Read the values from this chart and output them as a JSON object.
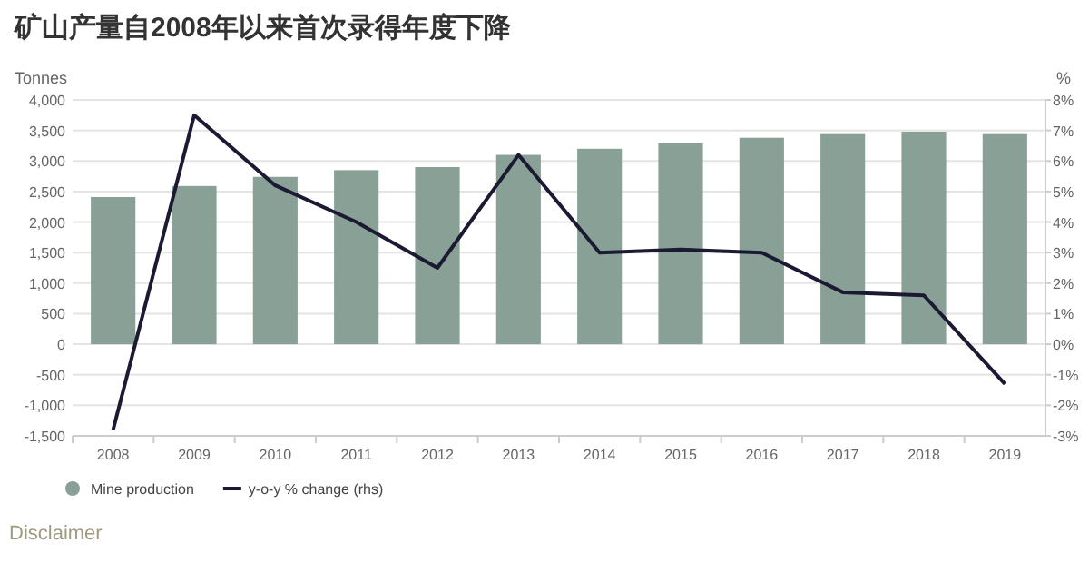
{
  "chart_data": {
    "type": "bar",
    "title": "矿山产量自2008年以来首次录得年度下降",
    "ylabel": "Tonnes",
    "y2label": "%",
    "categories": [
      "2008",
      "2009",
      "2010",
      "2011",
      "2012",
      "2013",
      "2014",
      "2015",
      "2016",
      "2017",
      "2018",
      "2019"
    ],
    "series": [
      {
        "name": "Mine production",
        "color": "#88a096",
        "values": [
          2410,
          2590,
          2740,
          2850,
          2900,
          3100,
          3200,
          3290,
          3380,
          3440,
          3480,
          3440
        ]
      },
      {
        "name": "y-o-y % change (rhs)",
        "type": "line",
        "axis": "y2",
        "color": "#1c1a33",
        "values": [
          -2.8,
          7.5,
          5.2,
          4.0,
          2.5,
          6.2,
          3.0,
          3.1,
          3.0,
          1.7,
          1.6,
          -1.3
        ]
      }
    ],
    "ylim": [
      -1500,
      4000
    ],
    "yticks": [
      {
        "value": -1500,
        "label": "-1,500"
      },
      {
        "value": -1000,
        "label": "-1,000"
      },
      -500,
      0,
      500,
      {
        "value": 1000,
        "label": "1,000"
      },
      {
        "value": 1500,
        "label": "1,500"
      },
      {
        "value": 2000,
        "label": "2,000"
      },
      {
        "value": 2500,
        "label": "2,500"
      },
      {
        "value": 3000,
        "label": "3,000"
      },
      {
        "value": 3500,
        "label": "3,500"
      },
      {
        "value": 4000,
        "label": "4,000"
      }
    ],
    "y2lim": [
      -3,
      8
    ],
    "y2ticks": [
      {
        "value": -3,
        "label": "-3%"
      },
      {
        "value": -2,
        "label": "-2%"
      },
      {
        "value": -1,
        "label": "-1%"
      },
      {
        "value": 0,
        "label": "0%"
      },
      {
        "value": 1,
        "label": "1%"
      },
      {
        "value": 2,
        "label": "2%"
      },
      {
        "value": 3,
        "label": "3%"
      },
      {
        "value": 4,
        "label": "4%"
      },
      {
        "value": 5,
        "label": "5%"
      },
      {
        "value": 6,
        "label": "6%"
      },
      {
        "value": 7,
        "label": "7%"
      },
      {
        "value": 8,
        "label": "8%"
      }
    ],
    "grid": "y",
    "legend": "bottom left",
    "annotations": [
      "Disclaimer"
    ]
  }
}
